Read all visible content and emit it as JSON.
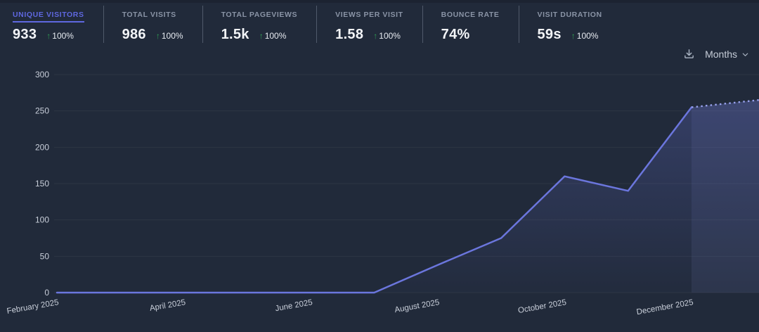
{
  "stats": {
    "arrow_glyph": "↑",
    "items": [
      {
        "label": "UNIQUE VISITORS",
        "value": "933",
        "change": "100%",
        "direction": "up",
        "active": true
      },
      {
        "label": "TOTAL VISITS",
        "value": "986",
        "change": "100%",
        "direction": "up",
        "active": false
      },
      {
        "label": "TOTAL PAGEVIEWS",
        "value": "1.5k",
        "change": "100%",
        "direction": "up",
        "active": false
      },
      {
        "label": "VIEWS PER VISIT",
        "value": "1.58",
        "change": "100%",
        "direction": "up",
        "active": false
      },
      {
        "label": "BOUNCE RATE",
        "value": "74%",
        "change": null,
        "direction": null,
        "active": false
      },
      {
        "label": "VISIT DURATION",
        "value": "59s",
        "change": "100%",
        "direction": "up",
        "active": false
      }
    ]
  },
  "toolbar": {
    "interval_label": "Months"
  },
  "colors": {
    "background": "#212a3a",
    "accent": "#5f68e0",
    "line": "#6b76dd",
    "line_projected": "#97a1ec",
    "positive_green": "#2f9e53",
    "tick_text": "#c8ced9",
    "gridline": "rgba(255,255,255,0.055)",
    "label_gray": "#8a94a6",
    "value_white": "#f3f5f8"
  },
  "chart_data": {
    "type": "line",
    "title": "Unique visitors by month",
    "x": [
      "February 2025",
      "March 2025",
      "April 2025",
      "May 2025",
      "June 2025",
      "July 2025",
      "August 2025",
      "September 2025",
      "October 2025",
      "November 2025",
      "December 2025"
    ],
    "series": [
      {
        "name": "Unique visitors",
        "values": [
          0,
          0,
          0,
          0,
          0,
          0,
          38,
          75,
          160,
          140,
          255
        ]
      }
    ],
    "projected": {
      "value": 265,
      "style": "dashed",
      "note": "dashed incomplete-period segment extending to right edge"
    },
    "x_tick_indices": [
      0,
      2,
      4,
      6,
      8,
      10
    ],
    "x_tick_labels": [
      "February 2025",
      "April 2025",
      "June 2025",
      "August 2025",
      "October 2025",
      "December 2025"
    ],
    "y_ticks": [
      0,
      50,
      100,
      150,
      200,
      250,
      300
    ],
    "ylim": [
      0,
      300
    ],
    "grid": "horizontal",
    "legend": "none",
    "area_fill": true
  }
}
